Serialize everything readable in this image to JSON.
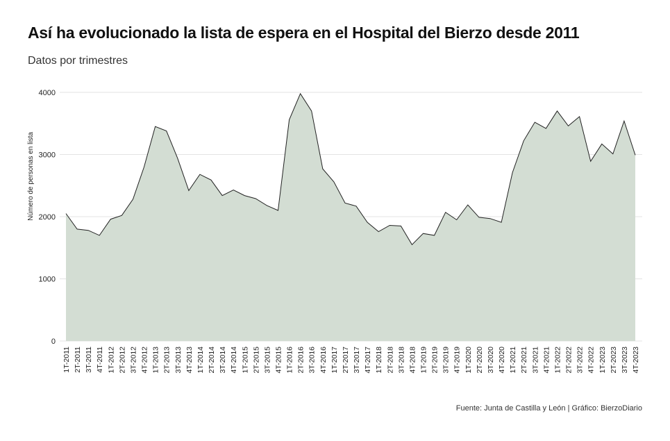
{
  "title": "Así ha evolucionado la lista de espera en el Hospital del Bierzo desde 2011",
  "subtitle": "Datos por trimestres",
  "caption": "Fuente: Junta de Castilla y León | Gráfico: BierzoDiario",
  "colors": {
    "area_fill": "#d3ddd3",
    "line": "#222222",
    "grid": "#e3e3e3"
  },
  "chart_data": {
    "type": "area",
    "title": "Así ha evolucionado la lista de espera en el Hospital del Bierzo desde 2011",
    "subtitle": "Datos por trimestres",
    "xlabel": "",
    "ylabel": "Número de personas en lista",
    "ylim": [
      0,
      4000
    ],
    "yticks": [
      0,
      1000,
      2000,
      3000,
      4000
    ],
    "grid": true,
    "categories": [
      "1T-2011",
      "2T-2011",
      "3T-2011",
      "4T-2011",
      "1T-2012",
      "2T-2012",
      "3T-2012",
      "4T-2012",
      "1T-2013",
      "2T-2013",
      "3T-2013",
      "4T-2013",
      "1T-2014",
      "2T-2014",
      "3T-2014",
      "4T-2014",
      "1T-2015",
      "2T-2015",
      "3T-2015",
      "4T-2015",
      "1T-2016",
      "2T-2016",
      "3T-2016",
      "4T-2016",
      "1T-2017",
      "2T-2017",
      "3T-2017",
      "4T-2017",
      "1T-2018",
      "2T-2018",
      "3T-2018",
      "4T-2018",
      "1T-2019",
      "2T-2019",
      "3T-2019",
      "4T-2019",
      "1T-2020",
      "2T-2020",
      "3T-2020",
      "4T-2020",
      "1T-2021",
      "2T-2021",
      "3T-2021",
      "4T-2021",
      "1T-2022",
      "2T-2022",
      "3T-2022",
      "4T-2022",
      "1T-2023",
      "2T-2023",
      "3T-2023",
      "4T-2023"
    ],
    "values": [
      2050,
      1800,
      1780,
      1700,
      1960,
      2020,
      2280,
      2800,
      3450,
      3380,
      2940,
      2420,
      2680,
      2590,
      2340,
      2430,
      2340,
      2290,
      2180,
      2100,
      3560,
      3980,
      3700,
      2770,
      2560,
      2220,
      2170,
      1910,
      1760,
      1860,
      1850,
      1550,
      1730,
      1700,
      2070,
      1950,
      2190,
      1990,
      1970,
      1910,
      2710,
      3220,
      3520,
      3420,
      3700,
      3460,
      3610,
      2890,
      3170,
      3010,
      3540,
      2990
    ]
  }
}
